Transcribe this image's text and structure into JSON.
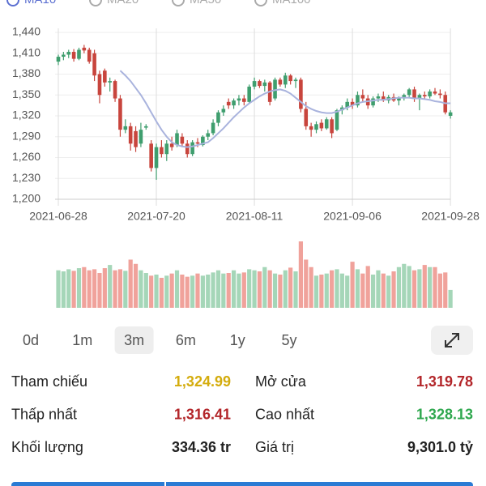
{
  "chart_data": {
    "type": "candlestick",
    "legend": [
      {
        "name": "MA10",
        "color": "#5b6fd1"
      },
      {
        "name": "MA20",
        "color": "#aaaaaa"
      },
      {
        "name": "MA50",
        "color": "#aaaaaa"
      },
      {
        "name": "MA100",
        "color": "#aaaaaa"
      }
    ],
    "ylim": [
      1200,
      1440
    ],
    "yticks": [
      {
        "value": 1200,
        "label": "1,200"
      },
      {
        "value": 1230,
        "label": "1,230"
      },
      {
        "value": 1260,
        "label": "1,260"
      },
      {
        "value": 1290,
        "label": "1,290"
      },
      {
        "value": 1320,
        "label": "1,320"
      },
      {
        "value": 1350,
        "label": "1,350"
      },
      {
        "value": 1380,
        "label": "1,380"
      },
      {
        "value": 1410,
        "label": "1,410"
      },
      {
        "value": 1440,
        "label": "1,440"
      }
    ],
    "categories": [
      "2021-06-28",
      null,
      null,
      null,
      null,
      null,
      null,
      null,
      null,
      null,
      null,
      null,
      null,
      null,
      null,
      null,
      null,
      null,
      null,
      "2021-07-20",
      null,
      null,
      null,
      null,
      null,
      null,
      null,
      null,
      null,
      null,
      null,
      null,
      null,
      null,
      null,
      null,
      null,
      null,
      "2021-08-11",
      null,
      null,
      null,
      null,
      null,
      null,
      null,
      null,
      null,
      null,
      null,
      null,
      null,
      null,
      null,
      null,
      null,
      null,
      "2021-09-06",
      null,
      null,
      null,
      null,
      null,
      null,
      null,
      null,
      null,
      null,
      null,
      null,
      null,
      null,
      null,
      null,
      null,
      null,
      "2021-09-28"
    ],
    "up_color": "#3f9e6e",
    "down_color": "#c8453d",
    "up_volume_color": "#a5d6b8",
    "down_volume_color": "#f0a29b",
    "grid": true,
    "ohlc": [
      [
        1398,
        1408,
        1393,
        1405
      ],
      [
        1405,
        1412,
        1400,
        1408
      ],
      [
        1408,
        1415,
        1403,
        1412
      ],
      [
        1412,
        1416,
        1398,
        1402
      ],
      [
        1402,
        1418,
        1400,
        1415
      ],
      [
        1418,
        1422,
        1410,
        1414
      ],
      [
        1415,
        1418,
        1395,
        1398
      ],
      [
        1410,
        1415,
        1370,
        1378
      ],
      [
        1380,
        1385,
        1338,
        1350
      ],
      [
        1385,
        1388,
        1362,
        1368
      ],
      [
        1368,
        1375,
        1355,
        1370
      ],
      [
        1370,
        1372,
        1340,
        1345
      ],
      [
        1345,
        1350,
        1290,
        1300
      ],
      [
        1300,
        1315,
        1295,
        1305
      ],
      [
        1305,
        1310,
        1270,
        1280
      ],
      [
        1298,
        1305,
        1268,
        1275
      ],
      [
        1280,
        1310,
        1275,
        1300
      ],
      [
        1303,
        1308,
        1300,
        1305
      ],
      [
        1280,
        1285,
        1240,
        1245
      ],
      [
        1245,
        1280,
        1228,
        1275
      ],
      [
        1275,
        1285,
        1260,
        1265
      ],
      [
        1265,
        1285,
        1255,
        1280
      ],
      [
        1280,
        1290,
        1270,
        1275
      ],
      [
        1278,
        1300,
        1275,
        1295
      ],
      [
        1290,
        1295,
        1275,
        1280
      ],
      [
        1280,
        1285,
        1260,
        1265
      ],
      [
        1265,
        1285,
        1262,
        1282
      ],
      [
        1282,
        1288,
        1275,
        1280
      ],
      [
        1278,
        1292,
        1276,
        1290
      ],
      [
        1290,
        1300,
        1285,
        1295
      ],
      [
        1295,
        1315,
        1292,
        1310
      ],
      [
        1310,
        1328,
        1305,
        1325
      ],
      [
        1325,
        1335,
        1320,
        1330
      ],
      [
        1340,
        1345,
        1330,
        1335
      ],
      [
        1335,
        1345,
        1330,
        1342
      ],
      [
        1342,
        1350,
        1335,
        1345
      ],
      [
        1345,
        1350,
        1335,
        1340
      ],
      [
        1340,
        1365,
        1338,
        1362
      ],
      [
        1362,
        1375,
        1358,
        1370
      ],
      [
        1370,
        1372,
        1360,
        1363
      ],
      [
        1363,
        1372,
        1355,
        1368
      ],
      [
        1368,
        1370,
        1335,
        1340
      ],
      [
        1345,
        1375,
        1342,
        1372
      ],
      [
        1372,
        1375,
        1362,
        1365
      ],
      [
        1365,
        1382,
        1360,
        1378
      ],
      [
        1378,
        1380,
        1365,
        1370
      ],
      [
        1370,
        1375,
        1360,
        1372
      ],
      [
        1372,
        1375,
        1325,
        1330
      ],
      [
        1330,
        1340,
        1300,
        1305
      ],
      [
        1305,
        1310,
        1290,
        1300
      ],
      [
        1300,
        1312,
        1295,
        1308
      ],
      [
        1310,
        1315,
        1298,
        1302
      ],
      [
        1302,
        1318,
        1300,
        1315
      ],
      [
        1315,
        1318,
        1288,
        1295
      ],
      [
        1300,
        1330,
        1298,
        1328
      ],
      [
        1328,
        1335,
        1322,
        1332
      ],
      [
        1332,
        1345,
        1328,
        1340
      ],
      [
        1340,
        1345,
        1330,
        1335
      ],
      [
        1335,
        1355,
        1332,
        1350
      ],
      [
        1350,
        1358,
        1340,
        1345
      ],
      [
        1345,
        1350,
        1330,
        1335
      ],
      [
        1335,
        1348,
        1332,
        1345
      ],
      [
        1345,
        1352,
        1340,
        1348
      ],
      [
        1348,
        1355,
        1340,
        1342
      ],
      [
        1342,
        1350,
        1338,
        1347
      ],
      [
        1347,
        1352,
        1340,
        1342
      ],
      [
        1342,
        1348,
        1335,
        1345
      ],
      [
        1345,
        1352,
        1342,
        1350
      ],
      [
        1350,
        1360,
        1345,
        1358
      ],
      [
        1358,
        1362,
        1340,
        1345
      ],
      [
        1345,
        1352,
        1328,
        1350
      ],
      [
        1350,
        1355,
        1345,
        1348
      ],
      [
        1348,
        1358,
        1345,
        1355
      ],
      [
        1355,
        1360,
        1350,
        1352
      ],
      [
        1352,
        1358,
        1345,
        1350
      ],
      [
        1350,
        1355,
        1322,
        1325
      ],
      [
        1320,
        1328,
        1316,
        1325
      ]
    ],
    "ma10": [
      null,
      null,
      null,
      null,
      null,
      null,
      null,
      null,
      null,
      null,
      null,
      null,
      1385,
      1378,
      1370,
      1360,
      1350,
      1338,
      1325,
      1312,
      1300,
      1290,
      1282,
      1278,
      1276,
      1275,
      1276,
      1278,
      1280,
      1282,
      1288,
      1295,
      1302,
      1310,
      1318,
      1325,
      1332,
      1338,
      1343,
      1348,
      1352,
      1355,
      1357,
      1358,
      1356,
      1352,
      1346,
      1340,
      1334,
      1330,
      1327,
      1325,
      1324,
      1324,
      1326,
      1329,
      1332,
      1335,
      1338,
      1340,
      1341,
      1342,
      1343,
      1343,
      1344,
      1345,
      1346,
      1346,
      1346,
      1345,
      1345,
      1344,
      1343,
      1341,
      1340,
      1338,
      1338
    ],
    "volume": [
      700,
      680,
      720,
      690,
      740,
      760,
      700,
      720,
      650,
      740,
      800,
      700,
      720,
      690,
      900,
      820,
      700,
      650,
      600,
      620,
      560,
      600,
      640,
      700,
      620,
      580,
      600,
      640,
      600,
      620,
      660,
      700,
      640,
      650,
      700,
      640,
      660,
      720,
      700,
      680,
      760,
      700,
      640,
      620,
      700,
      750,
      680,
      1240,
      900,
      760,
      600,
      620,
      640,
      700,
      720,
      640,
      600,
      860,
      720,
      640,
      780,
      620,
      700,
      640,
      600,
      680,
      760,
      820,
      780,
      700,
      720,
      800,
      760,
      760,
      640,
      660,
      334
    ]
  },
  "ranges": [
    "0d",
    "1m",
    "3m",
    "6m",
    "1y",
    "5y"
  ],
  "selected_range": "3m",
  "stats": [
    {
      "label": "Tham chiếu",
      "value": "1,324.99",
      "color": "#d4ac0d"
    },
    {
      "label": "Mở cửa",
      "value": "1,319.78",
      "color": "#b3262a"
    },
    {
      "label": "Thấp nhất",
      "value": "1,316.41",
      "color": "#b3262a"
    },
    {
      "label": "Cao nhất",
      "value": "1,328.13",
      "color": "#2fa84f"
    },
    {
      "label": "Khối lượng",
      "value": "334.36 tr",
      "color": "#222222"
    },
    {
      "label": "Giá trị",
      "value": "9,301.0 tỷ",
      "color": "#222222"
    }
  ]
}
